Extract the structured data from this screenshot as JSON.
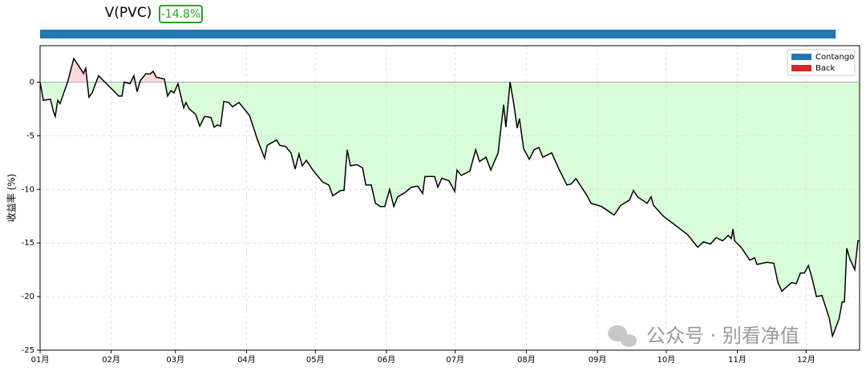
{
  "chart_data": {
    "type": "area-line",
    "title": "V(PVC)",
    "badge": {
      "value": -14.8,
      "label": "-14.8%"
    },
    "badge_color": "#2ca02c",
    "ylabel": "收益率 (%)",
    "watermark": "公众号 · 别看净值",
    "legend_items": [
      {
        "name": "Contango",
        "color": "#1f77b4"
      },
      {
        "name": "Back",
        "color": "#d62728"
      }
    ],
    "legend_corner": "upper right",
    "regimes": [
      {
        "state": "Contango",
        "start": 0,
        "end": 346.9
      }
    ],
    "line_color": "#000000",
    "positive_fill": "#ffd9d9",
    "negative_fill": "#d9fdd9",
    "grid": true,
    "xlim": [
      0,
      357.3
    ],
    "ylim": [
      -25,
      3.4
    ],
    "yticks": [
      -25,
      -20,
      -15,
      -10,
      -5,
      0
    ],
    "xticks": [
      {
        "value": 0,
        "label": "01月"
      },
      {
        "value": 31,
        "label": "02月"
      },
      {
        "value": 59,
        "label": "03月"
      },
      {
        "value": 90,
        "label": "04月"
      },
      {
        "value": 120,
        "label": "05月"
      },
      {
        "value": 151,
        "label": "06月"
      },
      {
        "value": 181,
        "label": "07月"
      },
      {
        "value": 212,
        "label": "08月"
      },
      {
        "value": 243,
        "label": "09月"
      },
      {
        "value": 273,
        "label": "10月"
      },
      {
        "value": 304,
        "label": "11月"
      },
      {
        "value": 334,
        "label": "12月"
      }
    ],
    "x": [
      0,
      1.4,
      4.5,
      5.9,
      6.6,
      7.7,
      8.7,
      12.2,
      14.7,
      17.5,
      18.9,
      19.9,
      21.3,
      22.7,
      25.5,
      34.3,
      35.7,
      36.7,
      39.2,
      40.9,
      42.3,
      43.7,
      46.2,
      47.9,
      49.3,
      50.7,
      54.2,
      55.6,
      57,
      58.4,
      60.1,
      62.6,
      63.6,
      65,
      67.8,
      69.6,
      71.7,
      74.5,
      75.9,
      77.3,
      78.7,
      80.1,
      82.2,
      83.9,
      86.7,
      91.3,
      94.8,
      97.9,
      99,
      103.1,
      104.5,
      107,
      109.4,
      111.2,
      112.9,
      114.3,
      116.1,
      118.9,
      123.1,
      125.9,
      127.6,
      131.1,
      132.5,
      133.9,
      135.3,
      138.1,
      140.6,
      142,
      144.4,
      146.2,
      148.3,
      150.3,
      152.4,
      154.2,
      155.9,
      159.1,
      161.9,
      164.7,
      166.8,
      167.8,
      172,
      173.4,
      175.2,
      178.3,
      180.8,
      181.8,
      183.6,
      187.4,
      189.9,
      191.6,
      194.4,
      196.5,
      199.7,
      202.1,
      203.1,
      204.9,
      206.6,
      208,
      209,
      210.8,
      213.3,
      215.4,
      217.5,
      219.2,
      223.1,
      226.2,
      229.7,
      231.5,
      233.6,
      238.5,
      240.2,
      244.8,
      250.3,
      253.1,
      257,
      258.7,
      260.5,
      264.7,
      266.4,
      267.5,
      271.7,
      282.2,
      286.7,
      289.2,
      292.3,
      294.8,
      297.6,
      300,
      301.4,
      302.1,
      302.8,
      305.6,
      309.4,
      311.5,
      312.6,
      317.1,
      319.9,
      321.7,
      323.4,
      327.6,
      329.7,
      331.5,
      333.2,
      335,
      336.7,
      338.5,
      340.9,
      342.7,
      344.1,
      345.5,
      348.3,
      349.7,
      350.7,
      351.7,
      353.1,
      355.2,
      356.6,
      357.3
    ],
    "values": [
      0,
      -1.7,
      -1.6,
      -2.8,
      -3.2,
      -1.7,
      -2.0,
      0.15,
      2.2,
      1.3,
      0.8,
      1.3,
      -1.4,
      -1.0,
      0.6,
      -1.3,
      -1.3,
      0,
      -0.15,
      0.6,
      -0.9,
      0.15,
      0.8,
      0.75,
      1.0,
      0.45,
      0.3,
      -1.3,
      -0.8,
      -1.0,
      -0.15,
      -2.4,
      -1.9,
      -2.5,
      -3.0,
      -4.1,
      -3.2,
      -3.3,
      -4.2,
      -4.0,
      -4.1,
      -1.8,
      -1.9,
      -2.3,
      -1.9,
      -3.1,
      -5.4,
      -7.1,
      -5.9,
      -5.4,
      -5.9,
      -6.0,
      -6.6,
      -8.1,
      -6.7,
      -7.8,
      -7.3,
      -8.2,
      -9.3,
      -9.6,
      -10.6,
      -10.1,
      -10.1,
      -6.3,
      -7.8,
      -7.7,
      -8.0,
      -9.6,
      -9.6,
      -11.3,
      -11.6,
      -11.6,
      -10.0,
      -11.6,
      -10.7,
      -10.3,
      -9.8,
      -9.7,
      -10.4,
      -8.8,
      -8.8,
      -9.8,
      -8.96,
      -9.2,
      -10.2,
      -8.2,
      -8.7,
      -8.3,
      -6.3,
      -7.4,
      -7.0,
      -8.2,
      -6.6,
      -2.1,
      -4.2,
      0,
      -2.1,
      -4.3,
      -3.4,
      -6.2,
      -7.2,
      -6.3,
      -6.1,
      -7.0,
      -6.6,
      -8.1,
      -9.6,
      -9.5,
      -9.0,
      -10.6,
      -11.3,
      -11.6,
      -12.4,
      -11.5,
      -11.0,
      -10.1,
      -10.7,
      -11.3,
      -10.7,
      -11.5,
      -12.5,
      -14.2,
      -15.4,
      -14.9,
      -15.1,
      -14.5,
      -14.8,
      -14.3,
      -14.6,
      -13.7,
      -14.8,
      -15.4,
      -16.6,
      -16.4,
      -17.0,
      -16.8,
      -16.9,
      -18.7,
      -19.5,
      -18.7,
      -18.8,
      -17.8,
      -17.8,
      -17.1,
      -18.4,
      -20.0,
      -19.9,
      -21.1,
      -22.0,
      -23.7,
      -22.1,
      -20.5,
      -20.5,
      -15.5,
      -16.5,
      -17.5,
      -14.8,
      -14.8
    ]
  }
}
